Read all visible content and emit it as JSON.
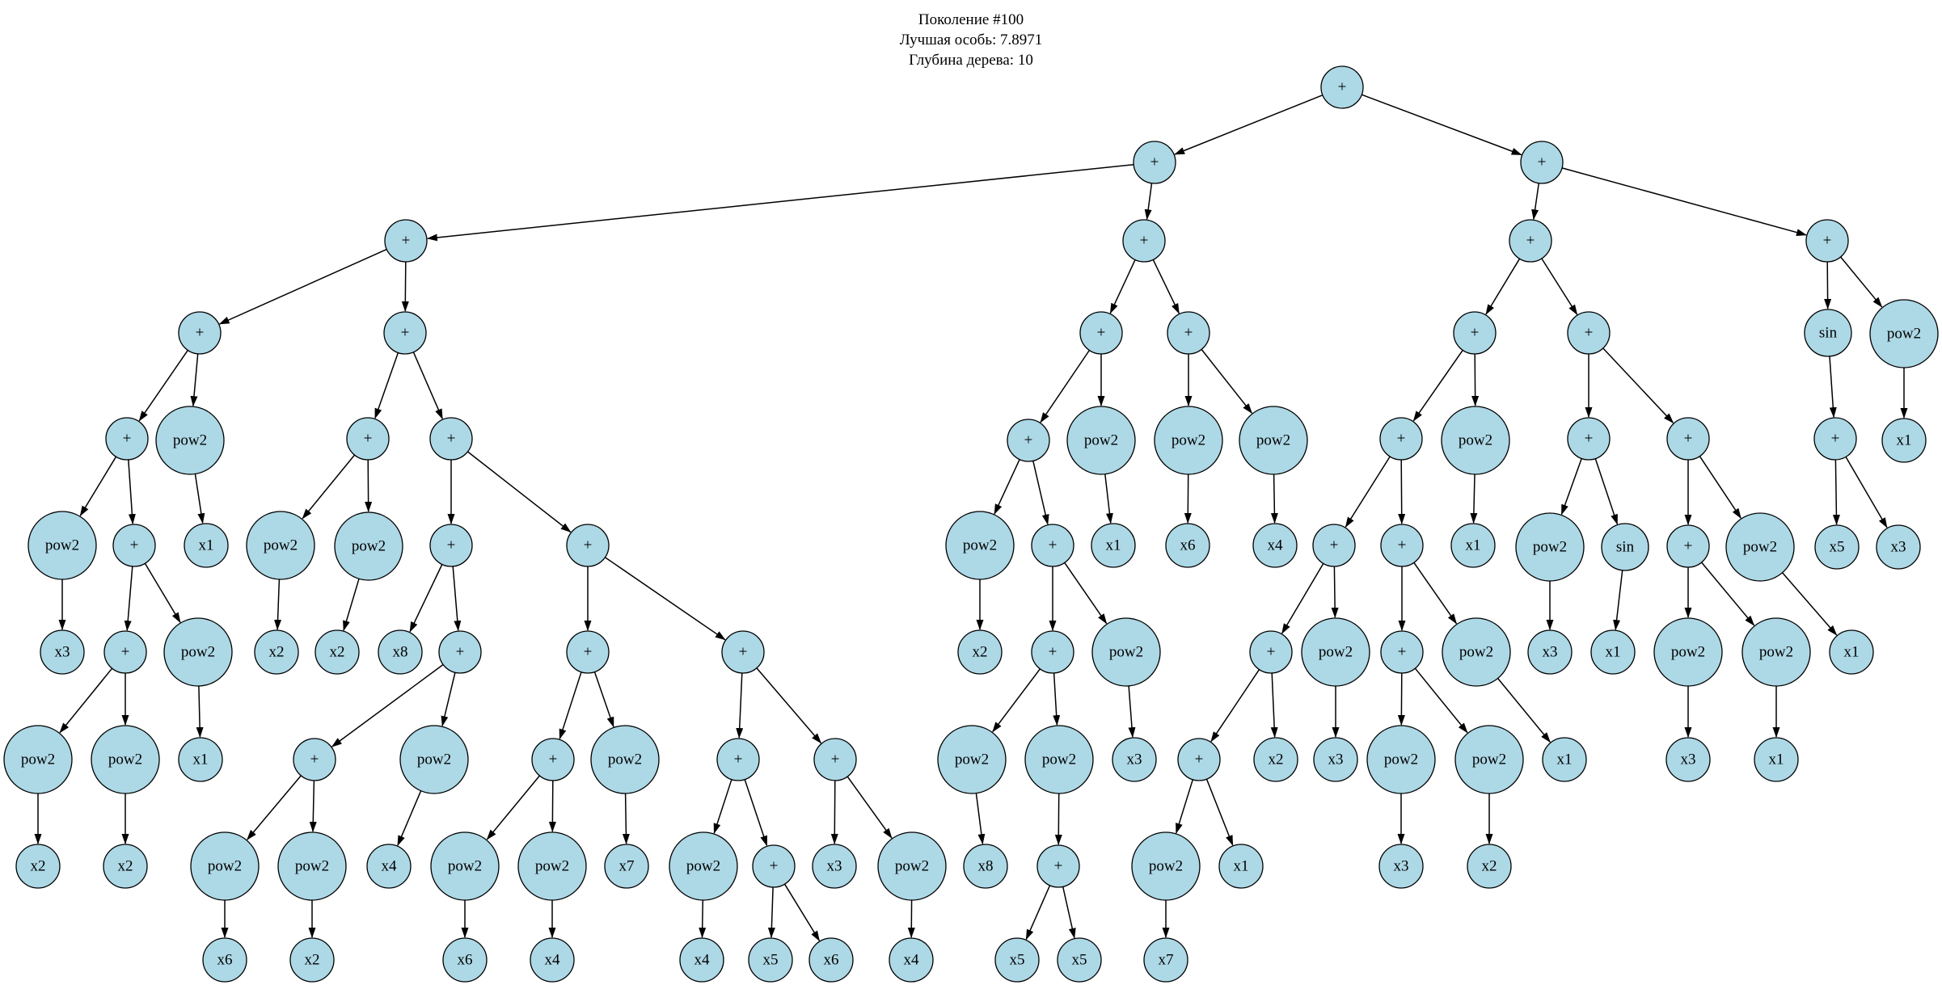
{
  "title": {
    "line1": "Поколение #100",
    "line2": "Лучшая особь: 7.8971",
    "line3": "Глубина дерева: 10"
  },
  "style": {
    "background": "#ffffff",
    "node_fill": "#add8e6",
    "node_stroke": "#000000",
    "edge_color": "#000000",
    "text_color": "#000000"
  },
  "tree": {
    "format": "nodes: [label, cx, cy] (pixel centers); edges: [parent_index, child_index]",
    "nodes": [
      [
        "+",
        1660,
        108
      ],
      [
        "+",
        1428,
        201
      ],
      [
        "+",
        1907,
        201
      ],
      [
        "+",
        502,
        298
      ],
      [
        "+",
        1415,
        298
      ],
      [
        "+",
        1893,
        298
      ],
      [
        "+",
        2260,
        298
      ],
      [
        "+",
        247,
        412
      ],
      [
        "+",
        501,
        412
      ],
      [
        "+",
        1362,
        412
      ],
      [
        "+",
        1470,
        412
      ],
      [
        "+",
        1824,
        412
      ],
      [
        "+",
        1965,
        412
      ],
      [
        "sin",
        2261,
        412
      ],
      [
        "pow2",
        2355,
        413
      ],
      [
        "+",
        157,
        543
      ],
      [
        "pow2",
        235,
        545
      ],
      [
        "+",
        455,
        543
      ],
      [
        "+",
        558,
        543
      ],
      [
        "+",
        1272,
        545
      ],
      [
        "pow2",
        1362,
        545
      ],
      [
        "pow2",
        1470,
        545
      ],
      [
        "pow2",
        1575,
        545
      ],
      [
        "+",
        1733,
        543
      ],
      [
        "pow2",
        1825,
        545
      ],
      [
        "+",
        1965,
        543
      ],
      [
        "+",
        2088,
        543
      ],
      [
        "+",
        2270,
        543
      ],
      [
        "x1",
        2355,
        545
      ],
      [
        "pow2",
        77,
        675
      ],
      [
        "+",
        166,
        675
      ],
      [
        "x1",
        255,
        675
      ],
      [
        "pow2",
        347,
        675
      ],
      [
        "pow2",
        456,
        676
      ],
      [
        "+",
        558,
        675
      ],
      [
        "+",
        727,
        675
      ],
      [
        "pow2",
        1212,
        675
      ],
      [
        "+",
        1302,
        675
      ],
      [
        "x1",
        1377,
        675
      ],
      [
        "x6",
        1469,
        675
      ],
      [
        "x4",
        1577,
        675
      ],
      [
        "+",
        1650,
        675
      ],
      [
        "+",
        1734,
        675
      ],
      [
        "x1",
        1822,
        675
      ],
      [
        "pow2",
        1917,
        677
      ],
      [
        "sin",
        2010,
        677
      ],
      [
        "+",
        2088,
        676
      ],
      [
        "pow2",
        2177,
        677
      ],
      [
        "x5",
        2272,
        677
      ],
      [
        "x3",
        2348,
        677
      ],
      [
        "x3",
        77,
        807
      ],
      [
        "+",
        155,
        807
      ],
      [
        "pow2",
        245,
        807
      ],
      [
        "x2",
        342,
        807
      ],
      [
        "x2",
        417,
        807
      ],
      [
        "x8",
        495,
        807
      ],
      [
        "+",
        569,
        807
      ],
      [
        "+",
        727,
        807
      ],
      [
        "+",
        919,
        807
      ],
      [
        "x2",
        1212,
        807
      ],
      [
        "+",
        1302,
        807
      ],
      [
        "pow2",
        1393,
        807
      ],
      [
        "+",
        1572,
        807
      ],
      [
        "pow2",
        1652,
        807
      ],
      [
        "+",
        1734,
        807
      ],
      [
        "pow2",
        1826,
        807
      ],
      [
        "x3",
        1917,
        807
      ],
      [
        "x1",
        1995,
        807
      ],
      [
        "pow2",
        2088,
        807
      ],
      [
        "pow2",
        2197,
        807
      ],
      [
        "x1",
        2290,
        807
      ],
      [
        "pow2",
        47,
        940
      ],
      [
        "pow2",
        155,
        940
      ],
      [
        "x1",
        248,
        940
      ],
      [
        "+",
        389,
        940
      ],
      [
        "pow2",
        537,
        940
      ],
      [
        "+",
        684,
        940
      ],
      [
        "pow2",
        773,
        940
      ],
      [
        "+",
        913,
        940
      ],
      [
        "+",
        1033,
        940
      ],
      [
        "pow2",
        1202,
        940
      ],
      [
        "pow2",
        1310,
        940
      ],
      [
        "x3",
        1403,
        940
      ],
      [
        "+",
        1483,
        940
      ],
      [
        "x2",
        1578,
        940
      ],
      [
        "x3",
        1652,
        940
      ],
      [
        "pow2",
        1733,
        940
      ],
      [
        "pow2",
        1842,
        940
      ],
      [
        "x1",
        1935,
        940
      ],
      [
        "x3",
        2088,
        940
      ],
      [
        "x1",
        2197,
        940
      ],
      [
        "x2",
        47,
        1072
      ],
      [
        "x2",
        155,
        1072
      ],
      [
        "pow2",
        278,
        1072
      ],
      [
        "pow2",
        386,
        1072
      ],
      [
        "x4",
        481,
        1072
      ],
      [
        "pow2",
        575,
        1072
      ],
      [
        "pow2",
        683,
        1072
      ],
      [
        "x7",
        775,
        1072
      ],
      [
        "pow2",
        870,
        1072
      ],
      [
        "+",
        957,
        1072
      ],
      [
        "x3",
        1032,
        1072
      ],
      [
        "pow2",
        1128,
        1072
      ],
      [
        "x8",
        1219,
        1072
      ],
      [
        "+",
        1309,
        1072
      ],
      [
        "pow2",
        1442,
        1072
      ],
      [
        "x1",
        1535,
        1072
      ],
      [
        "x3",
        1733,
        1072
      ],
      [
        "x2",
        1842,
        1072
      ],
      [
        "x6",
        278,
        1188
      ],
      [
        "x2",
        386,
        1188
      ],
      [
        "x6",
        575,
        1188
      ],
      [
        "x4",
        683,
        1188
      ],
      [
        "x4",
        868,
        1188
      ],
      [
        "x5",
        953,
        1188
      ],
      [
        "x6",
        1028,
        1188
      ],
      [
        "x4",
        1127,
        1188
      ],
      [
        "x5",
        1258,
        1188
      ],
      [
        "x5",
        1335,
        1188
      ],
      [
        "x7",
        1442,
        1188
      ]
    ],
    "edges": [
      [
        0,
        1
      ],
      [
        0,
        2
      ],
      [
        1,
        3
      ],
      [
        1,
        4
      ],
      [
        2,
        5
      ],
      [
        2,
        6
      ],
      [
        3,
        7
      ],
      [
        3,
        8
      ],
      [
        4,
        9
      ],
      [
        4,
        10
      ],
      [
        5,
        11
      ],
      [
        5,
        12
      ],
      [
        6,
        13
      ],
      [
        6,
        14
      ],
      [
        7,
        15
      ],
      [
        7,
        16
      ],
      [
        8,
        17
      ],
      [
        8,
        18
      ],
      [
        9,
        19
      ],
      [
        9,
        20
      ],
      [
        10,
        21
      ],
      [
        10,
        22
      ],
      [
        11,
        23
      ],
      [
        11,
        24
      ],
      [
        12,
        25
      ],
      [
        12,
        26
      ],
      [
        13,
        27
      ],
      [
        14,
        28
      ],
      [
        15,
        29
      ],
      [
        15,
        30
      ],
      [
        16,
        31
      ],
      [
        17,
        32
      ],
      [
        17,
        33
      ],
      [
        18,
        34
      ],
      [
        18,
        35
      ],
      [
        19,
        36
      ],
      [
        19,
        37
      ],
      [
        20,
        38
      ],
      [
        21,
        39
      ],
      [
        22,
        40
      ],
      [
        23,
        41
      ],
      [
        23,
        42
      ],
      [
        24,
        43
      ],
      [
        25,
        44
      ],
      [
        25,
        45
      ],
      [
        26,
        46
      ],
      [
        26,
        47
      ],
      [
        27,
        48
      ],
      [
        27,
        49
      ],
      [
        29,
        50
      ],
      [
        30,
        51
      ],
      [
        30,
        52
      ],
      [
        32,
        53
      ],
      [
        33,
        54
      ],
      [
        34,
        55
      ],
      [
        34,
        56
      ],
      [
        35,
        57
      ],
      [
        35,
        58
      ],
      [
        36,
        59
      ],
      [
        37,
        60
      ],
      [
        37,
        61
      ],
      [
        41,
        62
      ],
      [
        41,
        63
      ],
      [
        42,
        64
      ],
      [
        42,
        65
      ],
      [
        44,
        66
      ],
      [
        45,
        67
      ],
      [
        46,
        68
      ],
      [
        46,
        69
      ],
      [
        47,
        70
      ],
      [
        51,
        71
      ],
      [
        51,
        72
      ],
      [
        52,
        73
      ],
      [
        56,
        74
      ],
      [
        56,
        75
      ],
      [
        57,
        76
      ],
      [
        57,
        77
      ],
      [
        58,
        78
      ],
      [
        58,
        79
      ],
      [
        60,
        80
      ],
      [
        60,
        81
      ],
      [
        61,
        82
      ],
      [
        62,
        83
      ],
      [
        62,
        84
      ],
      [
        63,
        85
      ],
      [
        64,
        86
      ],
      [
        64,
        87
      ],
      [
        65,
        88
      ],
      [
        68,
        89
      ],
      [
        69,
        90
      ],
      [
        71,
        91
      ],
      [
        72,
        92
      ],
      [
        74,
        93
      ],
      [
        74,
        94
      ],
      [
        75,
        95
      ],
      [
        76,
        96
      ],
      [
        76,
        97
      ],
      [
        77,
        98
      ],
      [
        78,
        99
      ],
      [
        78,
        100
      ],
      [
        79,
        101
      ],
      [
        79,
        102
      ],
      [
        80,
        103
      ],
      [
        81,
        104
      ],
      [
        83,
        105
      ],
      [
        83,
        106
      ],
      [
        86,
        107
      ],
      [
        87,
        108
      ],
      [
        93,
        109
      ],
      [
        94,
        110
      ],
      [
        96,
        111
      ],
      [
        97,
        112
      ],
      [
        99,
        113
      ],
      [
        100,
        114
      ],
      [
        100,
        115
      ],
      [
        102,
        116
      ],
      [
        104,
        117
      ],
      [
        104,
        118
      ],
      [
        105,
        119
      ]
    ]
  }
}
